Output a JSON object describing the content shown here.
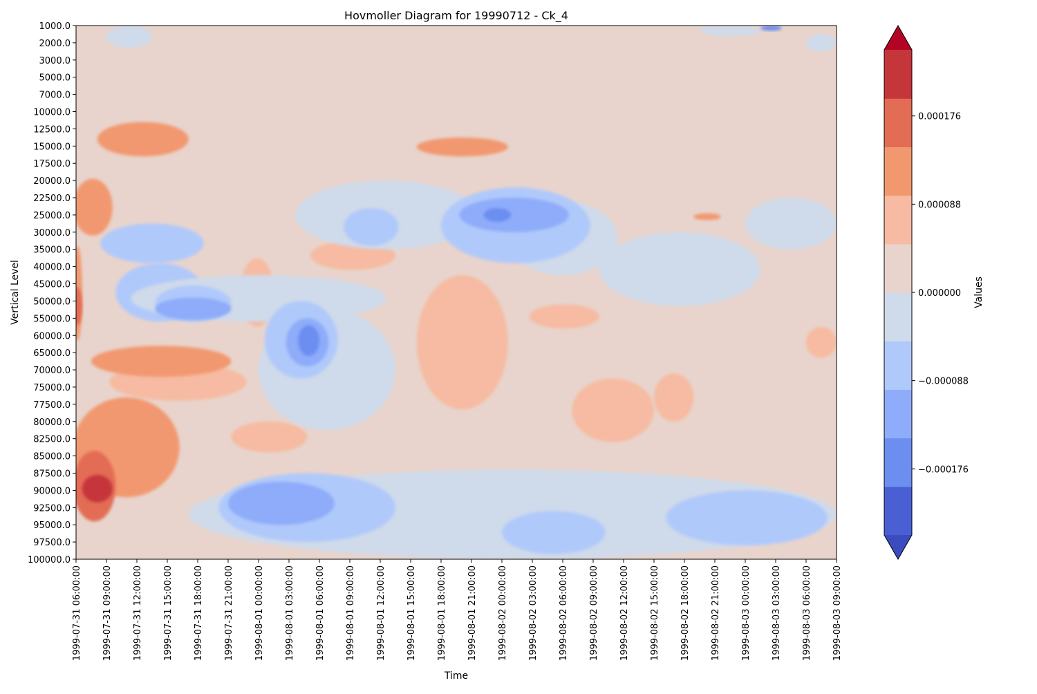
{
  "chart_data": {
    "type": "heatmap",
    "title": "Hovmoller Diagram for 19990712 - Ck_4",
    "xlabel": "Time",
    "ylabel": "Vertical Level",
    "colorbar_label": "Values",
    "x_ticks": [
      "1999-07-31 06:00:00",
      "1999-07-31 09:00:00",
      "1999-07-31 12:00:00",
      "1999-07-31 15:00:00",
      "1999-07-31 18:00:00",
      "1999-07-31 21:00:00",
      "1999-08-01 00:00:00",
      "1999-08-01 03:00:00",
      "1999-08-01 06:00:00",
      "1999-08-01 09:00:00",
      "1999-08-01 12:00:00",
      "1999-08-01 15:00:00",
      "1999-08-01 18:00:00",
      "1999-08-01 21:00:00",
      "1999-08-02 00:00:00",
      "1999-08-02 03:00:00",
      "1999-08-02 06:00:00",
      "1999-08-02 09:00:00",
      "1999-08-02 12:00:00",
      "1999-08-02 15:00:00",
      "1999-08-02 18:00:00",
      "1999-08-02 21:00:00",
      "1999-08-03 00:00:00",
      "1999-08-03 03:00:00",
      "1999-08-03 06:00:00",
      "1999-08-03 09:00:00"
    ],
    "y_levels": [
      "1000.0",
      "2000.0",
      "3000.0",
      "5000.0",
      "7000.0",
      "10000.0",
      "12500.0",
      "15000.0",
      "17500.0",
      "20000.0",
      "22500.0",
      "25000.0",
      "30000.0",
      "35000.0",
      "40000.0",
      "45000.0",
      "50000.0",
      "55000.0",
      "60000.0",
      "65000.0",
      "70000.0",
      "75000.0",
      "77500.0",
      "80000.0",
      "82500.0",
      "85000.0",
      "87500.0",
      "90000.0",
      "92500.0",
      "95000.0",
      "97500.0",
      "100000.0"
    ],
    "colorbar_ticks": [
      "0.000176",
      "0.000088",
      "0.000000",
      "−0.000088",
      "−0.000176"
    ],
    "colorbar_tick_values": [
      0.000176,
      8.8e-05,
      0.0,
      -8.8e-05,
      -0.000176
    ],
    "value_range": [
      -0.000242,
      0.000242
    ],
    "levels": [
      -0.000242,
      -0.000198,
      -0.000154,
      -0.00011,
      -6.6e-05,
      -2.2e-05,
      2.2e-05,
      6.6e-05,
      0.00011,
      0.000154,
      0.000198,
      0.000242
    ],
    "colors": [
      "#4a5fd4",
      "#6c8ef0",
      "#8eacfa",
      "#b0c9fb",
      "#cfdaea",
      "#e8d4cc",
      "#f6bba2",
      "#f2986f",
      "#e36c54",
      "#c5363a"
    ],
    "extend_colors": {
      "under": "#3b4cc0",
      "over": "#b40426"
    },
    "colormap": "coolwarm",
    "grid": false,
    "regions": [
      {
        "t": [
          5.4,
          6.5
        ],
        "lev": [
          13.5,
          17.5
        ],
        "v": 4e-05
      },
      {
        "t": [
          1.1,
          5.6
        ],
        "lev": [
          19.6,
          21.8
        ],
        "v": 4e-05
      },
      {
        "t": [
          7.7,
          10.5
        ],
        "lev": [
          12.5,
          14.2
        ],
        "v": 4e-05
      },
      {
        "t": [
          11.2,
          14.2
        ],
        "lev": [
          14.5,
          22.3
        ],
        "v": 4e-05
      },
      {
        "t": [
          14.9,
          17.2
        ],
        "lev": [
          16.2,
          17.6
        ],
        "v": 4e-05
      },
      {
        "t": [
          16.3,
          19.0
        ],
        "lev": [
          20.5,
          24.2
        ],
        "v": 4e-05
      },
      {
        "t": [
          19.0,
          20.3
        ],
        "lev": [
          20.2,
          23.0
        ],
        "v": 4e-05
      },
      {
        "t": [
          5.1,
          7.6
        ],
        "lev": [
          23.0,
          24.8
        ],
        "v": 4e-05
      },
      {
        "t": [
          24.0,
          25.0
        ],
        "lev": [
          17.5,
          19.3
        ],
        "v": 4e-05
      },
      {
        "t": [
          -0.1,
          0.2
        ],
        "lev": [
          12.8,
          18.3
        ],
        "v": 8e-05
      },
      {
        "t": [
          0.5,
          5.1
        ],
        "lev": [
          18.6,
          20.4
        ],
        "v": 8e-05
      },
      {
        "t": [
          -0.1,
          3.4
        ],
        "lev": [
          21.6,
          27.4
        ],
        "v": 8e-05
      },
      {
        "t": [
          -0.1,
          1.2
        ],
        "lev": [
          8.9,
          12.2
        ],
        "v": 8e-05
      },
      {
        "t": [
          0.7,
          3.7
        ],
        "lev": [
          5.6,
          7.6
        ],
        "v": 8e-05
      },
      {
        "t": [
          11.2,
          14.2
        ],
        "lev": [
          6.5,
          7.6
        ],
        "v": 8e-05
      },
      {
        "t": [
          20.3,
          21.2
        ],
        "lev": [
          10.9,
          11.3
        ],
        "v": 8e-05
      },
      {
        "t": [
          -0.1,
          1.3
        ],
        "lev": [
          24.7,
          28.8
        ],
        "v": 0.00013
      },
      {
        "t": [
          -0.1,
          0.2
        ],
        "lev": [
          15.2,
          17.4
        ],
        "v": 0.00013
      },
      {
        "t": [
          0.2,
          1.2
        ],
        "lev": [
          26.1,
          27.7
        ],
        "v": 0.00017
      },
      {
        "t": [
          1.0,
          2.5
        ],
        "lev": [
          0.0,
          1.3
        ],
        "v": -4e-05
      },
      {
        "t": [
          0.8,
          4.2
        ],
        "lev": [
          11.5,
          13.8
        ],
        "v": -9e-05
      },
      {
        "t": [
          1.3,
          4.2
        ],
        "lev": [
          13.8,
          17.2
        ],
        "v": -9e-05
      },
      {
        "t": [
          1.8,
          10.2
        ],
        "lev": [
          14.5,
          17.2
        ],
        "v": -4e-05
      },
      {
        "t": [
          7.2,
          13.2
        ],
        "lev": [
          9.0,
          13.0
        ],
        "v": -4e-05
      },
      {
        "t": [
          14.2,
          17.8
        ],
        "lev": [
          10.2,
          14.5
        ],
        "v": -4e-05
      },
      {
        "t": [
          17.2,
          22.5
        ],
        "lev": [
          12.0,
          16.3
        ],
        "v": -4e-05
      },
      {
        "t": [
          22.0,
          25.0
        ],
        "lev": [
          10.0,
          13.0
        ],
        "v": -4e-05
      },
      {
        "t": [
          6.0,
          10.5
        ],
        "lev": [
          16.5,
          23.5
        ],
        "v": -4e-05
      },
      {
        "t": [
          3.7,
          25.0
        ],
        "lev": [
          25.8,
          31.0
        ],
        "v": -4e-05
      },
      {
        "t": [
          24.0,
          25.0
        ],
        "lev": [
          0.5,
          1.5
        ],
        "v": -4e-05
      },
      {
        "t": [
          20.5,
          22.5
        ],
        "lev": [
          0.0,
          0.6
        ],
        "v": -4e-05
      },
      {
        "t": [
          2.6,
          5.1
        ],
        "lev": [
          15.1,
          17.2
        ],
        "v": -9e-05
      },
      {
        "t": [
          6.2,
          8.6
        ],
        "lev": [
          16.0,
          20.5
        ],
        "v": -9e-05
      },
      {
        "t": [
          8.8,
          10.6
        ],
        "lev": [
          10.6,
          12.8
        ],
        "v": -9e-05
      },
      {
        "t": [
          12.0,
          16.9
        ],
        "lev": [
          9.4,
          13.8
        ],
        "v": -9e-05
      },
      {
        "t": [
          4.7,
          10.5
        ],
        "lev": [
          26.0,
          30.0
        ],
        "v": -9e-05
      },
      {
        "t": [
          14.0,
          17.4
        ],
        "lev": [
          28.2,
          30.7
        ],
        "v": -9e-05
      },
      {
        "t": [
          19.4,
          24.7
        ],
        "lev": [
          27.0,
          30.2
        ],
        "v": -9e-05
      },
      {
        "t": [
          2.6,
          5.1
        ],
        "lev": [
          15.8,
          17.1
        ],
        "v": -0.00013
      },
      {
        "t": [
          6.9,
          8.3
        ],
        "lev": [
          17.0,
          19.8
        ],
        "v": -0.00013
      },
      {
        "t": [
          12.6,
          16.2
        ],
        "lev": [
          10.0,
          12.0
        ],
        "v": -0.00013
      },
      {
        "t": [
          5.0,
          8.5
        ],
        "lev": [
          26.5,
          29.0
        ],
        "v": -0.00013
      },
      {
        "t": [
          13.4,
          14.3
        ],
        "lev": [
          10.6,
          11.4
        ],
        "v": -0.00018
      },
      {
        "t": [
          7.3,
          8.0
        ],
        "lev": [
          17.4,
          19.2
        ],
        "v": -0.00018
      },
      {
        "t": [
          22.5,
          23.2
        ],
        "lev": [
          0.0,
          0.3
        ],
        "v": -0.00018
      }
    ]
  }
}
